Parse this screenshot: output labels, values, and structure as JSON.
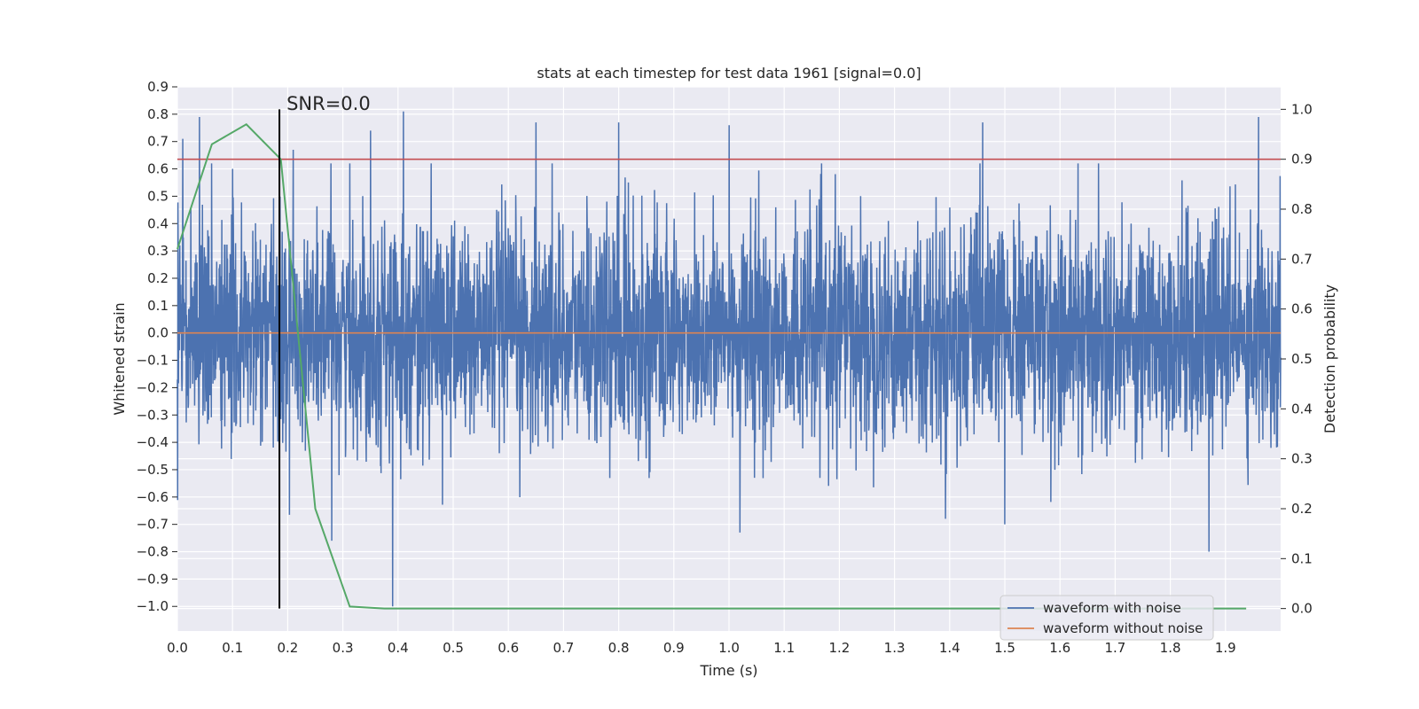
{
  "chart_data": {
    "type": "line",
    "title": "stats at each timestep for test data 1961 [signal=0.0]",
    "xlabel": "Time (s)",
    "ylabel": "Whitened strain",
    "y2label": "Detection probability",
    "xlim": [
      0.0,
      2.0
    ],
    "ylim": [
      -1.09,
      0.9
    ],
    "y2lim": [
      -0.045,
      1.045
    ],
    "x_ticks": [
      "0.0",
      "0.1",
      "0.2",
      "0.3",
      "0.4",
      "0.5",
      "0.6",
      "0.7",
      "0.8",
      "0.9",
      "1.0",
      "1.1",
      "1.2",
      "1.3",
      "1.4",
      "1.5",
      "1.6",
      "1.7",
      "1.8",
      "1.9"
    ],
    "y_ticks": [
      "0.9",
      "0.8",
      "0.7",
      "0.6",
      "0.5",
      "0.4",
      "0.3",
      "0.2",
      "0.1",
      "0.0",
      "−0.1",
      "−0.2",
      "−0.3",
      "−0.4",
      "−0.5",
      "−0.6",
      "−0.7",
      "−0.8",
      "−0.9",
      "−1.0"
    ],
    "y2_ticks": [
      "1.0",
      "0.9",
      "0.8",
      "0.7",
      "0.6",
      "0.5",
      "0.4",
      "0.3",
      "0.2",
      "0.1",
      "0.0"
    ],
    "grid": true,
    "legend_position": "lower-right",
    "annotation": {
      "text": "SNR=0.0",
      "x": 0.185
    },
    "threshold": 0.9,
    "series": [
      {
        "name": "waveform with noise",
        "color": "#4c72b0",
        "axis": "left",
        "samples": 4096,
        "x_range": [
          0.0,
          2.0
        ],
        "notable_points": [
          {
            "x": 0.01,
            "y": 0.71
          },
          {
            "x": 0.04,
            "y": 0.79
          },
          {
            "x": 0.1,
            "y": 0.6
          },
          {
            "x": 0.19,
            "y": 0.37
          },
          {
            "x": 0.21,
            "y": 0.67
          },
          {
            "x": 0.28,
            "y": -0.76
          },
          {
            "x": 0.35,
            "y": 0.74
          },
          {
            "x": 0.39,
            "y": -1.0
          },
          {
            "x": 0.41,
            "y": 0.81
          },
          {
            "x": 0.65,
            "y": 0.77
          },
          {
            "x": 0.8,
            "y": 0.77
          },
          {
            "x": 1.0,
            "y": 0.76
          },
          {
            "x": 1.02,
            "y": -0.73
          },
          {
            "x": 1.46,
            "y": 0.77
          },
          {
            "x": 1.5,
            "y": -0.7
          },
          {
            "x": 1.87,
            "y": -0.8
          },
          {
            "x": 1.96,
            "y": 0.79
          }
        ]
      },
      {
        "name": "waveform without noise",
        "color": "#dd8452",
        "axis": "left",
        "x": [
          0.0,
          2.0
        ],
        "y": [
          0.0,
          0.0
        ]
      },
      {
        "name": "",
        "color": "#55a868",
        "axis": "right",
        "x": [
          0.0,
          0.0625,
          0.125,
          0.1875,
          0.25,
          0.3125,
          0.375,
          0.4375,
          0.5,
          0.5625,
          0.625,
          0.6875,
          0.75,
          0.8125,
          0.875,
          0.9375,
          1.0,
          1.0625,
          1.125,
          1.1875,
          1.25,
          1.3125,
          1.375,
          1.4375,
          1.5,
          1.5625,
          1.625,
          1.6875,
          1.75,
          1.8125,
          1.875,
          1.9375
        ],
        "y": [
          0.72,
          0.93,
          0.97,
          0.9,
          0.2,
          0.004,
          0.0,
          0.0,
          0.0,
          0.0,
          0.0,
          0.0,
          0.0,
          0.0,
          0.0,
          0.0,
          0.0,
          0.0,
          0.0,
          0.0,
          0.0,
          0.0,
          0.0,
          0.0,
          0.0,
          0.0,
          0.0,
          0.0,
          0.0,
          0.0,
          0.0,
          0.0
        ]
      }
    ],
    "colors": {
      "plot_background": "#eaeaf2",
      "grid": "#ffffff",
      "threshold_line": "#c44e52",
      "annotation_line": "#000000"
    }
  }
}
